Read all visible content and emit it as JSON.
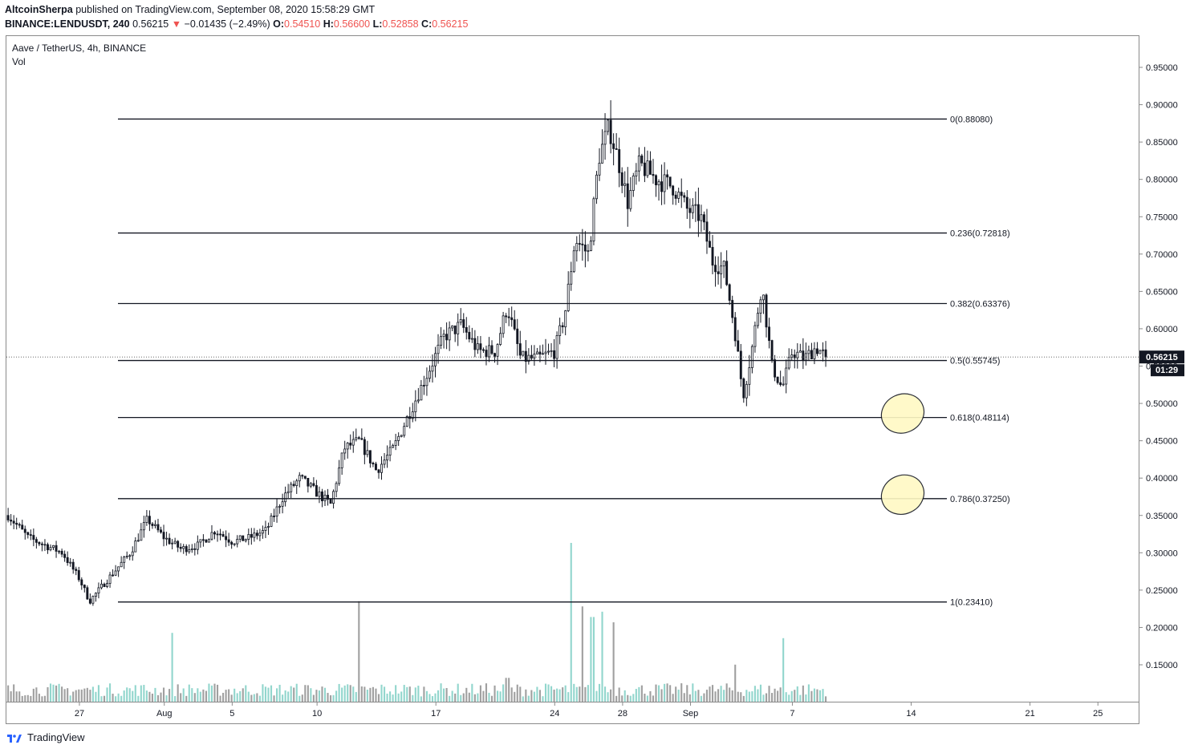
{
  "header": {
    "author": "AltcoinSherpa",
    "published": "published on TradingView.com, September 08, 2020 15:58:29 GMT",
    "symbol": "BINANCE:LENDUSDT, 240",
    "last": "0.56215",
    "change_arrow": "▼",
    "change": "−0.01435 (−2.49%)",
    "o_label": "O:",
    "o_value": "0.54510",
    "h_label": "H:",
    "h_value": "0.56600",
    "l_label": "L:",
    "l_value": "0.52858",
    "c_label": "C:",
    "c_value": "0.56215"
  },
  "legend": {
    "title": "Aave / TetherUS, 4h, BINANCE",
    "volume_label": "Vol"
  },
  "footer": {
    "brand": "TradingView",
    "logo_icon": "tradingview-logo-icon"
  },
  "colors": {
    "up": "#26a69a",
    "down": "#ef5350",
    "fib_line": "#131722",
    "highlight": "#fff9c4"
  },
  "chart_data": {
    "type": "candlestick",
    "ylim": [
      0.1,
      0.98
    ],
    "y_ticks": [
      "0.95000",
      "0.90000",
      "0.85000",
      "0.80000",
      "0.75000",
      "0.70000",
      "0.65000",
      "0.60000",
      "0.55000",
      "0.50000",
      "0.45000",
      "0.40000",
      "0.35000",
      "0.30000",
      "0.25000",
      "0.20000",
      "0.15000"
    ],
    "y_tick_values": [
      0.95,
      0.9,
      0.85,
      0.8,
      0.75,
      0.7,
      0.65,
      0.6,
      0.55,
      0.5,
      0.45,
      0.4,
      0.35,
      0.3,
      0.25,
      0.2,
      0.15
    ],
    "x_ticks": [
      "27",
      "Aug",
      "5",
      "10",
      "17",
      "24",
      "28",
      "Sep",
      "7",
      "14",
      "21",
      "25"
    ],
    "x_tick_days": [
      27,
      32,
      36,
      41,
      48,
      55,
      59,
      63,
      69,
      76,
      83,
      87
    ],
    "x_range_days": [
      22.7,
      89.4
    ],
    "price_label": "0.56215",
    "countdown_label": "01:29",
    "last_price": 0.56215,
    "fib_levels": [
      {
        "label": "0(0.88080)",
        "value": 0.8808
      },
      {
        "label": "0.236(0.72818)",
        "value": 0.72818
      },
      {
        "label": "0.382(0.63376)",
        "value": 0.63376
      },
      {
        "label": "0.5(0.55745)",
        "value": 0.55745
      },
      {
        "label": "0.618(0.48114)",
        "value": 0.48114
      },
      {
        "label": "0.786(0.37250)",
        "value": 0.3725
      },
      {
        "label": "1(0.23410)",
        "value": 0.2341
      }
    ],
    "highlight_zones": [
      {
        "level": 0.48114,
        "center_day": 75.5
      },
      {
        "level": 0.3725,
        "center_day": 75.5
      }
    ],
    "price_path": [
      [
        22.8,
        0.35
      ],
      [
        24,
        0.32
      ],
      [
        25,
        0.31
      ],
      [
        26,
        0.3
      ],
      [
        27,
        0.265
      ],
      [
        27.6,
        0.235
      ],
      [
        28.5,
        0.26
      ],
      [
        30,
        0.3
      ],
      [
        31,
        0.345
      ],
      [
        32,
        0.32
      ],
      [
        33,
        0.305
      ],
      [
        34,
        0.31
      ],
      [
        35,
        0.33
      ],
      [
        36,
        0.315
      ],
      [
        37,
        0.32
      ],
      [
        38,
        0.33
      ],
      [
        39,
        0.375
      ],
      [
        40,
        0.4
      ],
      [
        41,
        0.38
      ],
      [
        41.8,
        0.365
      ],
      [
        42.6,
        0.44
      ],
      [
        43.5,
        0.45
      ],
      [
        44.5,
        0.41
      ],
      [
        45.5,
        0.44
      ],
      [
        46.5,
        0.49
      ],
      [
        47.5,
        0.54
      ],
      [
        48.5,
        0.59
      ],
      [
        49.5,
        0.605
      ],
      [
        50.5,
        0.57
      ],
      [
        51.5,
        0.57
      ],
      [
        52.2,
        0.63
      ],
      [
        53,
        0.56
      ],
      [
        54,
        0.56
      ],
      [
        55,
        0.57
      ],
      [
        55.6,
        0.62
      ],
      [
        56.2,
        0.72
      ],
      [
        57,
        0.7
      ],
      [
        57.6,
        0.83
      ],
      [
        58.2,
        0.87
      ],
      [
        58.8,
        0.82
      ],
      [
        59.3,
        0.77
      ],
      [
        60,
        0.82
      ],
      [
        61,
        0.8
      ],
      [
        62,
        0.79
      ],
      [
        62.8,
        0.76
      ],
      [
        63.6,
        0.75
      ],
      [
        64.3,
        0.69
      ],
      [
        65,
        0.68
      ],
      [
        65.6,
        0.6
      ],
      [
        66.1,
        0.51
      ],
      [
        66.6,
        0.57
      ],
      [
        67.2,
        0.66
      ],
      [
        67.8,
        0.55
      ],
      [
        68.4,
        0.52
      ],
      [
        69,
        0.57
      ],
      [
        69.7,
        0.56
      ],
      [
        70.4,
        0.575
      ],
      [
        71,
        0.56215
      ]
    ],
    "volume_spikes": [
      [
        32.5,
        0.26
      ],
      [
        43.4,
        0.38
      ],
      [
        52.2,
        0.09
      ],
      [
        56.0,
        0.6
      ],
      [
        56.6,
        0.36
      ],
      [
        57.2,
        0.32
      ],
      [
        57.8,
        0.34
      ],
      [
        58.4,
        0.3
      ],
      [
        65.6,
        0.14
      ],
      [
        68.5,
        0.24
      ]
    ]
  }
}
